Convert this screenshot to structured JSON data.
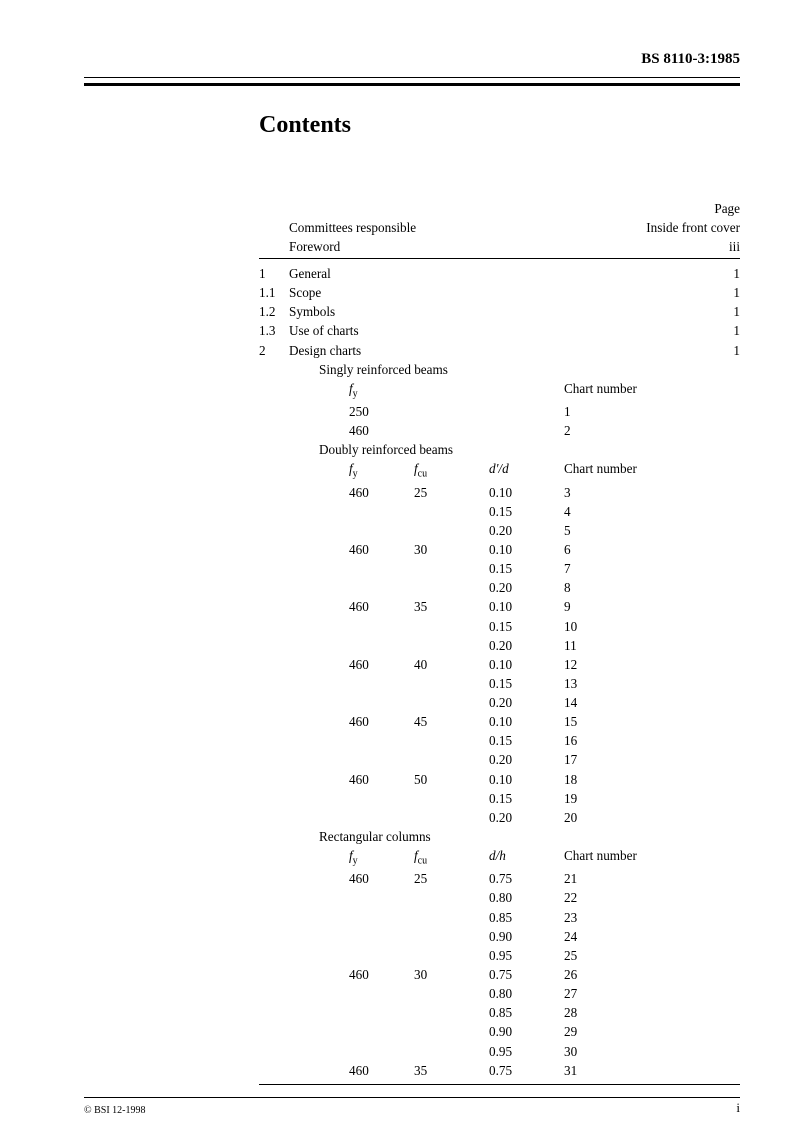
{
  "header": {
    "docnum": "BS 8110-3:1985"
  },
  "title": "Contents",
  "page_label": "Page",
  "toc_top": [
    {
      "num": "",
      "title": "Committees responsible",
      "page": "Inside front cover"
    },
    {
      "num": "",
      "title": "Foreword",
      "page": "iii"
    }
  ],
  "toc_main": [
    {
      "num": "1",
      "title": "General",
      "page": "1"
    },
    {
      "num": "1.1",
      "title": "Scope",
      "page": "1"
    },
    {
      "num": "1.2",
      "title": "Symbols",
      "page": "1"
    },
    {
      "num": "1.3",
      "title": "Use of charts",
      "page": "1"
    },
    {
      "num": "2",
      "title": "Design charts",
      "page": "1"
    }
  ],
  "sect_singly": "Singly reinforced beams",
  "singly_hdr": {
    "fy": "f",
    "fy_sub": "y",
    "chart": "Chart number"
  },
  "singly_rows": [
    {
      "fy": "250",
      "chart": "1"
    },
    {
      "fy": "460",
      "chart": "2"
    }
  ],
  "sect_doubly": "Doubly reinforced beams",
  "doubly_hdr": {
    "fy": "f",
    "fy_sub": "y",
    "fcu": "f",
    "fcu_sub": "cu",
    "ratio": "d'/d",
    "chart": "Chart number"
  },
  "doubly_rows": [
    {
      "fy": "460",
      "fcu": "25",
      "r": "0.10",
      "c": "3"
    },
    {
      "fy": "",
      "fcu": "",
      "r": "0.15",
      "c": "4"
    },
    {
      "fy": "",
      "fcu": "",
      "r": "0.20",
      "c": "5"
    },
    {
      "fy": "460",
      "fcu": "30",
      "r": "0.10",
      "c": "6"
    },
    {
      "fy": "",
      "fcu": "",
      "r": "0.15",
      "c": "7"
    },
    {
      "fy": "",
      "fcu": "",
      "r": "0.20",
      "c": "8"
    },
    {
      "fy": "460",
      "fcu": "35",
      "r": "0.10",
      "c": "9"
    },
    {
      "fy": "",
      "fcu": "",
      "r": "0.15",
      "c": "10"
    },
    {
      "fy": "",
      "fcu": "",
      "r": "0.20",
      "c": "11"
    },
    {
      "fy": "460",
      "fcu": "40",
      "r": "0.10",
      "c": "12"
    },
    {
      "fy": "",
      "fcu": "",
      "r": "0.15",
      "c": "13"
    },
    {
      "fy": "",
      "fcu": "",
      "r": "0.20",
      "c": "14"
    },
    {
      "fy": "460",
      "fcu": "45",
      "r": "0.10",
      "c": "15"
    },
    {
      "fy": "",
      "fcu": "",
      "r": "0.15",
      "c": "16"
    },
    {
      "fy": "",
      "fcu": "",
      "r": "0.20",
      "c": "17"
    },
    {
      "fy": "460",
      "fcu": "50",
      "r": "0.10",
      "c": "18"
    },
    {
      "fy": "",
      "fcu": "",
      "r": "0.15",
      "c": "19"
    },
    {
      "fy": "",
      "fcu": "",
      "r": "0.20",
      "c": "20"
    }
  ],
  "sect_rect": "Rectangular columns",
  "rect_hdr": {
    "fy": "f",
    "fy_sub": "y",
    "fcu": "f",
    "fcu_sub": "cu",
    "ratio": "d/h",
    "chart": "Chart number"
  },
  "rect_rows": [
    {
      "fy": "460",
      "fcu": "25",
      "r": "0.75",
      "c": "21"
    },
    {
      "fy": "",
      "fcu": "",
      "r": "0.80",
      "c": "22"
    },
    {
      "fy": "",
      "fcu": "",
      "r": "0.85",
      "c": "23"
    },
    {
      "fy": "",
      "fcu": "",
      "r": "0.90",
      "c": "24"
    },
    {
      "fy": "",
      "fcu": "",
      "r": "0.95",
      "c": "25"
    },
    {
      "fy": "460",
      "fcu": "30",
      "r": "0.75",
      "c": "26"
    },
    {
      "fy": "",
      "fcu": "",
      "r": "0.80",
      "c": "27"
    },
    {
      "fy": "",
      "fcu": "",
      "r": "0.85",
      "c": "28"
    },
    {
      "fy": "",
      "fcu": "",
      "r": "0.90",
      "c": "29"
    },
    {
      "fy": "",
      "fcu": "",
      "r": "0.95",
      "c": "30"
    },
    {
      "fy": "460",
      "fcu": "35",
      "r": "0.75",
      "c": "31"
    }
  ],
  "footer": {
    "left": "© BSI 12-1998",
    "right": "i"
  }
}
